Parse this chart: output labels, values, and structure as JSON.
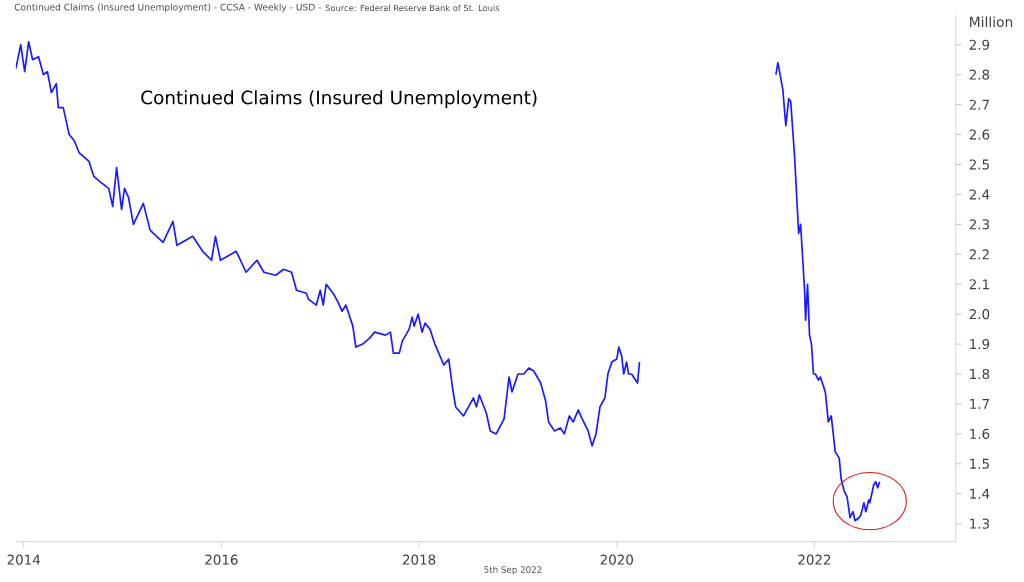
{
  "chart_data": {
    "type": "line",
    "title": "Continued Claims (Insured Unemployment)",
    "ylabel": "Million",
    "annotations": [
      "Continued Claims (Insured Unemployment) - CCSA - Weekly - USD -",
      "Source: Federal Reserve Bank of St. Louis",
      "5th Sep 2022"
    ],
    "xlim": [
      2013.92,
      2023.43
    ],
    "ylim": [
      1.24,
      3.0
    ],
    "xticks": [
      2014,
      2016,
      2018,
      2020,
      2022
    ],
    "yticks": [
      1.3,
      1.4,
      1.5,
      1.6,
      1.7,
      1.8,
      1.9,
      {
        "value": 2,
        "label": "2.0"
      },
      2.1,
      2.2,
      2.3,
      2.4,
      2.5,
      2.6,
      2.7,
      2.8,
      2.9
    ],
    "marker": "none",
    "line_style": "solid",
    "series": [
      {
        "color": "#1a1aff",
        "x": [
          2013.92,
          2013.97,
          2014.01,
          2014.05,
          2014.09,
          2014.15,
          2014.2,
          2014.24,
          2014.28,
          2014.33,
          2014.35,
          2014.4,
          2014.46,
          2014.51,
          2014.56,
          2014.66,
          2014.71,
          2014.78,
          2014.86,
          2014.9,
          2014.94,
          2014.99,
          2015.02,
          2015.06,
          2015.11,
          2015.21,
          2015.28,
          2015.41,
          2015.51,
          2015.55,
          2015.71,
          2015.81,
          2015.9,
          2015.94,
          2015.99,
          2016.15,
          2016.25,
          2016.36,
          2016.43,
          2016.55,
          2016.63,
          2016.71,
          2016.76,
          2016.86,
          2016.88,
          2016.96,
          2017.0,
          2017.03,
          2017.06,
          2017.13,
          2017.18,
          2017.22,
          2017.26,
          2017.33,
          2017.36,
          2017.43,
          2017.5,
          2017.55,
          2017.66,
          2017.71,
          2017.74,
          2017.8,
          2017.83,
          2017.9,
          2017.93,
          2017.95,
          2017.99,
          2018.03,
          2018.06,
          2018.11,
          2018.16,
          2018.25,
          2018.3,
          2018.34,
          2018.37,
          2018.45,
          2018.5,
          2018.55,
          2018.58,
          2018.61,
          2018.68,
          2018.72,
          2018.78,
          2018.86,
          2018.91,
          2018.94,
          2019.0,
          2019.06,
          2019.11,
          2019.16,
          2019.23,
          2019.28,
          2019.31,
          2019.37,
          2019.43,
          2019.47,
          2019.52,
          2019.56,
          2019.61,
          2019.65,
          2019.71,
          2019.75,
          2019.79,
          2019.83,
          2019.88,
          2019.91,
          2019.95,
          2020.0,
          2020.02,
          2020.05,
          2020.07,
          2020.1,
          2020.12,
          2020.15,
          2020.21,
          2020.23,
          2020.24,
          2020.9,
          2021.58,
          2021.61,
          2021.63,
          2021.68,
          2021.71,
          2021.74,
          2021.76,
          2021.8,
          2021.84,
          2021.86,
          2021.9,
          2021.91,
          2021.93,
          2021.95,
          2021.97,
          2021.99,
          2022.01,
          2022.04,
          2022.06,
          2022.11,
          2022.14,
          2022.17,
          2022.21,
          2022.25,
          2022.27,
          2022.3,
          2022.33,
          2022.36,
          2022.39,
          2022.41,
          2022.45,
          2022.47,
          2022.5,
          2022.52,
          2022.55,
          2022.56,
          2022.6,
          2022.62,
          2022.64,
          2022.66
        ],
        "values": [
          2.82,
          2.9,
          2.81,
          2.91,
          2.85,
          2.86,
          2.8,
          2.81,
          2.74,
          2.77,
          2.69,
          2.69,
          2.6,
          2.58,
          2.54,
          2.51,
          2.46,
          2.44,
          2.42,
          2.36,
          2.49,
          2.35,
          2.42,
          2.39,
          2.3,
          2.37,
          2.28,
          2.24,
          2.31,
          2.23,
          2.26,
          2.21,
          2.18,
          2.26,
          2.18,
          2.21,
          2.14,
          2.18,
          2.14,
          2.13,
          2.15,
          2.14,
          2.08,
          2.07,
          2.05,
          2.03,
          2.08,
          2.03,
          2.1,
          2.07,
          2.04,
          2.01,
          2.03,
          1.96,
          1.89,
          1.9,
          1.92,
          1.94,
          1.93,
          1.94,
          1.87,
          1.87,
          1.91,
          1.95,
          1.99,
          1.96,
          2.0,
          1.94,
          1.97,
          1.95,
          1.9,
          1.83,
          1.85,
          1.75,
          1.69,
          1.66,
          1.69,
          1.72,
          1.69,
          1.73,
          1.67,
          1.61,
          1.6,
          1.65,
          1.79,
          1.74,
          1.8,
          1.8,
          1.82,
          1.81,
          1.77,
          1.71,
          1.64,
          1.61,
          1.62,
          1.6,
          1.66,
          1.64,
          1.68,
          1.65,
          1.61,
          1.56,
          1.6,
          1.69,
          1.72,
          1.8,
          1.84,
          1.85,
          1.89,
          1.86,
          1.8,
          1.84,
          1.8,
          1.8,
          1.77,
          1.84,
          null,
          null,
          null,
          2.8,
          2.84,
          2.75,
          2.63,
          2.72,
          2.71,
          2.52,
          2.27,
          2.3,
          2.08,
          1.98,
          2.1,
          1.93,
          1.9,
          1.8,
          1.8,
          1.78,
          1.79,
          1.74,
          1.64,
          1.66,
          1.54,
          1.52,
          1.45,
          1.41,
          1.39,
          1.32,
          1.34,
          1.31,
          1.32,
          1.33,
          1.37,
          1.34,
          1.38,
          1.37,
          1.43,
          1.44,
          1.42,
          1.44
        ]
      }
    ]
  }
}
